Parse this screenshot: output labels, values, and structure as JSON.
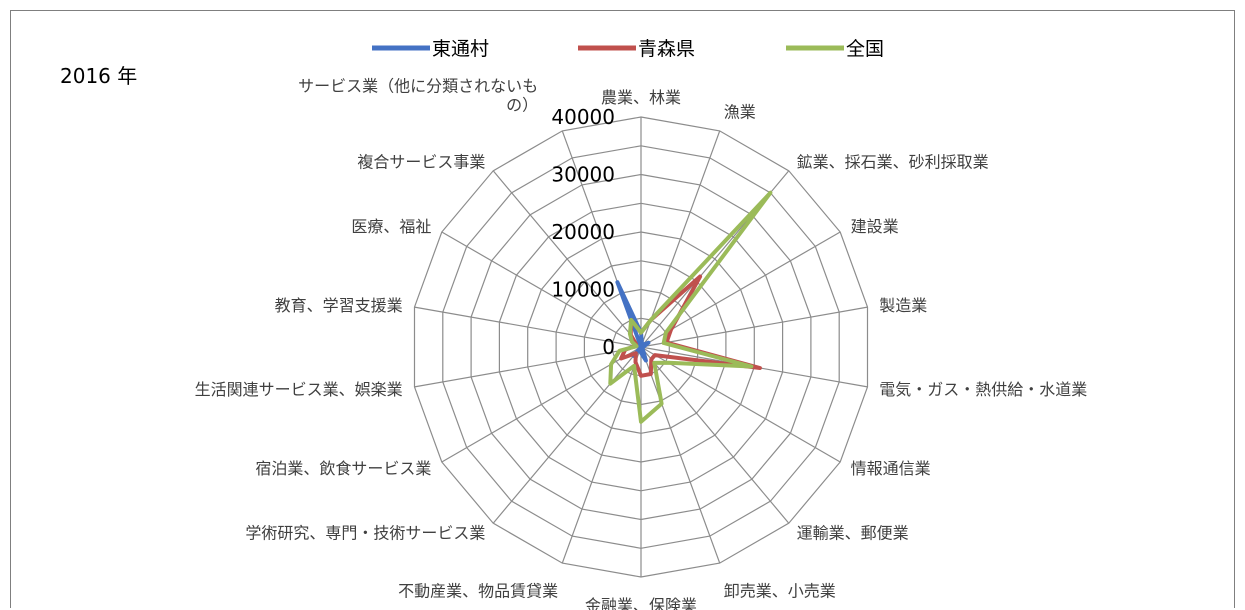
{
  "chart_data": {
    "type": "radar",
    "title": "2016 年",
    "categories": [
      "農業、林業",
      "漁業",
      "鉱業、採石業、砂利採取業",
      "建設業",
      "製造業",
      "電気・ガス・熱供給・水道業",
      "情報通信業",
      "運輸業、郵便業",
      "卸売業、小売業",
      "金融業、保険業",
      "不動産業、物品賃貸業",
      "学術研究、専門・技術サービス業",
      "宿泊業、飲食サービス業",
      "生活関連サービス業、娯楽業",
      "教育、学習支援業",
      "医療、福祉",
      "複合サービス事業",
      "サービス業（他に分類されないもの）"
    ],
    "category_lines": [
      [
        "農業、林業"
      ],
      [
        "漁業"
      ],
      [
        "鉱業、採石業、砂利採取業"
      ],
      [
        "建設業"
      ],
      [
        "製造業"
      ],
      [
        "電気・ガス・熱供給・水道業"
      ],
      [
        "情報通信業"
      ],
      [
        "運輸業、郵便業"
      ],
      [
        "卸売業、小売業"
      ],
      [
        "金融業、保険業"
      ],
      [
        "不動産業、物品賃貸業"
      ],
      [
        "学術研究、専門・技術サービス業"
      ],
      [
        "宿泊業、飲食サービス業"
      ],
      [
        "生活関連サービス業、娯楽業"
      ],
      [
        "教育、学習支援業"
      ],
      [
        "医療、福祉"
      ],
      [
        "複合サービス事業"
      ],
      [
        "サービス業（他に分類されないも",
        "の）"
      ]
    ],
    "series": [
      {
        "name": "東通村",
        "color": "#4472c4",
        "values": [
          2500,
          500,
          500,
          1500,
          500,
          300,
          0,
          500,
          2500,
          1000,
          0,
          2000,
          0,
          0,
          0,
          0,
          0,
          12000
        ]
      },
      {
        "name": "青森県",
        "color": "#c0504d",
        "values": [
          2500,
          5000,
          16000,
          6000,
          4500,
          21000,
          2800,
          2800,
          5000,
          5000,
          2800,
          1400,
          4000,
          2800,
          1000,
          1000,
          2800,
          5000
        ]
      },
      {
        "name": "全国",
        "color": "#9bbb59",
        "values": [
          2500,
          5000,
          35000,
          5000,
          4000,
          19500,
          5500,
          3600,
          10500,
          13000,
          3500,
          8300,
          6000,
          3800,
          800,
          1800,
          3000,
          5000
        ]
      }
    ],
    "rlim": [
      0,
      40000
    ],
    "ticks": [
      0,
      10000,
      20000,
      30000,
      40000
    ],
    "grid": true,
    "legend_position": "top"
  }
}
